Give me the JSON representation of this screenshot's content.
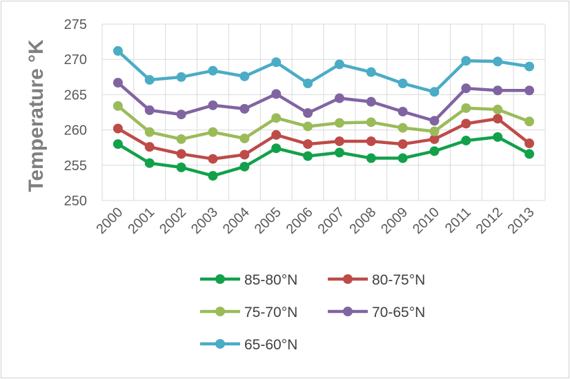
{
  "chart_data": {
    "type": "line",
    "title": "",
    "xlabel": "",
    "ylabel": "Temperature °K",
    "ylim": [
      250,
      275
    ],
    "ytick_step": 5,
    "grid": true,
    "legend_position": "bottom",
    "categories": [
      "2000",
      "2001",
      "2002",
      "2003",
      "2004",
      "2005",
      "2006",
      "2007",
      "2008",
      "2009",
      "2010",
      "2011",
      "2012",
      "2013"
    ],
    "series": [
      {
        "name": "85-80°N",
        "color": "#12a14a",
        "values": [
          258.0,
          255.3,
          254.7,
          253.5,
          254.8,
          257.4,
          256.3,
          256.8,
          256.0,
          256.0,
          257.0,
          258.5,
          259.0,
          256.6
        ]
      },
      {
        "name": "80-75°N",
        "color": "#be4b48",
        "values": [
          260.2,
          257.6,
          256.6,
          255.9,
          256.5,
          259.3,
          258.0,
          258.4,
          258.4,
          258.0,
          258.7,
          260.9,
          261.6,
          258.1
        ]
      },
      {
        "name": "75-70°N",
        "color": "#9bbb59",
        "values": [
          263.4,
          259.7,
          258.7,
          259.7,
          258.8,
          261.7,
          260.5,
          261.0,
          261.1,
          260.3,
          259.8,
          263.1,
          262.9,
          261.2
        ]
      },
      {
        "name": "70-65°N",
        "color": "#8064a2",
        "values": [
          266.7,
          262.8,
          262.2,
          263.5,
          263.0,
          265.1,
          262.4,
          264.5,
          264.0,
          262.6,
          261.3,
          265.9,
          265.6,
          265.6
        ]
      },
      {
        "name": "65-60°N",
        "color": "#4bacc6",
        "values": [
          271.2,
          267.1,
          267.5,
          268.4,
          267.6,
          269.6,
          266.6,
          269.3,
          268.2,
          266.6,
          265.4,
          269.8,
          269.7,
          269.0
        ]
      }
    ]
  }
}
